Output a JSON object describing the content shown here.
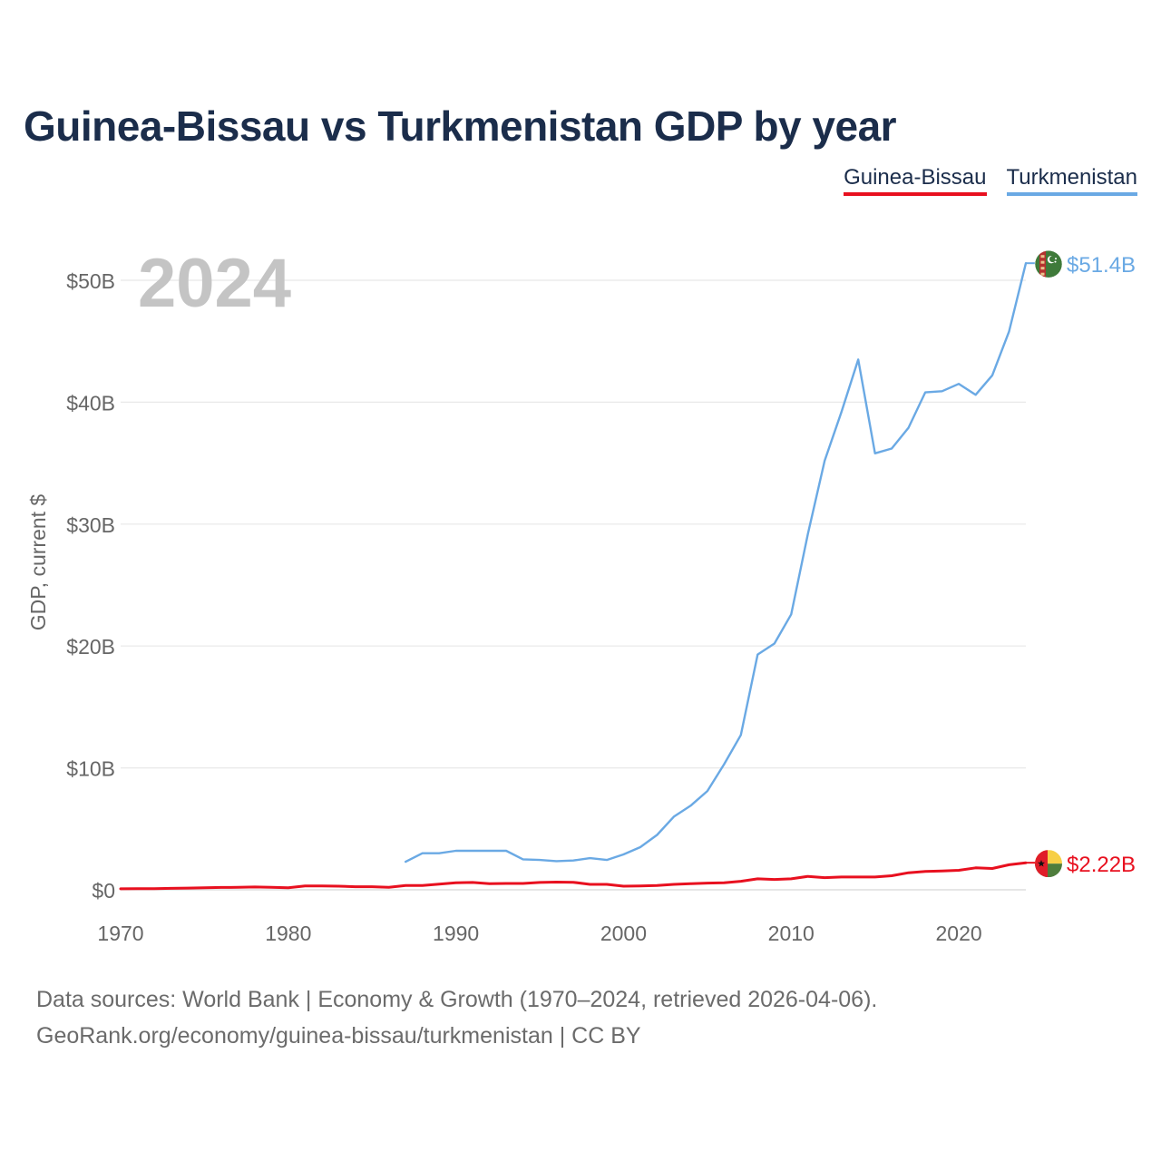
{
  "header": {
    "title": "Guinea-Bissau vs Turkmenistan GDP by year"
  },
  "legend": {
    "items": [
      {
        "label": "Guinea-Bissau",
        "color": "#e8101f"
      },
      {
        "label": "Turkmenistan",
        "color": "#6aa9e4"
      }
    ]
  },
  "footer": {
    "line1": "Data sources: World Bank | Economy & Growth (1970–2024, retrieved 2026-04-06).",
    "line2": "GeoRank.org/economy/guinea-bissau/turkmenistan | CC BY"
  },
  "chart_data": {
    "type": "line",
    "title": "Guinea-Bissau vs Turkmenistan GDP by year",
    "year_label": "2024",
    "ylabel": "GDP, current $",
    "xlabel": "",
    "xlim": [
      1970,
      2024
    ],
    "ylim": [
      0,
      52
    ],
    "y_ticks": [
      0,
      10,
      20,
      30,
      40,
      50
    ],
    "y_tick_labels": [
      "$0",
      "$10B",
      "$20B",
      "$30B",
      "$40B",
      "$50B"
    ],
    "x_ticks": [
      1970,
      1980,
      1990,
      2000,
      2010,
      2020
    ],
    "x_tick_labels": [
      "1970",
      "1980",
      "1990",
      "2000",
      "2010",
      "2020"
    ],
    "grid": true,
    "legend_position": "top-right",
    "series": [
      {
        "name": "Turkmenistan",
        "color": "#6aa9e4",
        "end_label": "$51.4B",
        "flag_icon": "turkmenistan-flag-icon",
        "x": [
          1987,
          1988,
          1989,
          1990,
          1991,
          1992,
          1993,
          1994,
          1995,
          1996,
          1997,
          1998,
          1999,
          2000,
          2001,
          2002,
          2003,
          2004,
          2005,
          2006,
          2007,
          2008,
          2009,
          2010,
          2011,
          2012,
          2013,
          2014,
          2015,
          2016,
          2017,
          2018,
          2019,
          2020,
          2021,
          2022,
          2023,
          2024
        ],
        "values": [
          2.3,
          3.0,
          3.0,
          3.2,
          3.2,
          3.2,
          3.2,
          2.5,
          2.45,
          2.35,
          2.4,
          2.6,
          2.45,
          2.9,
          3.5,
          4.5,
          6.0,
          6.9,
          8.1,
          10.3,
          12.7,
          19.3,
          20.2,
          22.6,
          29.2,
          35.2,
          39.2,
          43.5,
          35.8,
          36.2,
          37.9,
          40.8,
          40.9,
          41.5,
          40.6,
          42.2,
          45.8,
          51.4
        ]
      },
      {
        "name": "Guinea-Bissau",
        "color": "#e8101f",
        "end_label": "$2.22B",
        "flag_icon": "guinea-bissau-flag-icon",
        "x": [
          1970,
          1971,
          1972,
          1973,
          1974,
          1975,
          1976,
          1977,
          1978,
          1979,
          1980,
          1981,
          1982,
          1983,
          1984,
          1985,
          1986,
          1987,
          1988,
          1989,
          1990,
          1991,
          1992,
          1993,
          1994,
          1995,
          1996,
          1997,
          1998,
          1999,
          2000,
          2001,
          2002,
          2003,
          2004,
          2005,
          2006,
          2007,
          2008,
          2009,
          2010,
          2011,
          2012,
          2013,
          2014,
          2015,
          2016,
          2017,
          2018,
          2019,
          2020,
          2021,
          2022,
          2023,
          2024
        ],
        "values": [
          0.08,
          0.09,
          0.1,
          0.12,
          0.14,
          0.17,
          0.19,
          0.2,
          0.23,
          0.2,
          0.17,
          0.31,
          0.32,
          0.3,
          0.25,
          0.25,
          0.21,
          0.36,
          0.35,
          0.46,
          0.58,
          0.6,
          0.5,
          0.52,
          0.52,
          0.6,
          0.63,
          0.62,
          0.45,
          0.45,
          0.3,
          0.32,
          0.35,
          0.45,
          0.5,
          0.55,
          0.57,
          0.7,
          0.9,
          0.85,
          0.9,
          1.1,
          1.0,
          1.05,
          1.05,
          1.05,
          1.15,
          1.4,
          1.5,
          1.55,
          1.6,
          1.8,
          1.75,
          2.05,
          2.22
        ]
      }
    ]
  }
}
